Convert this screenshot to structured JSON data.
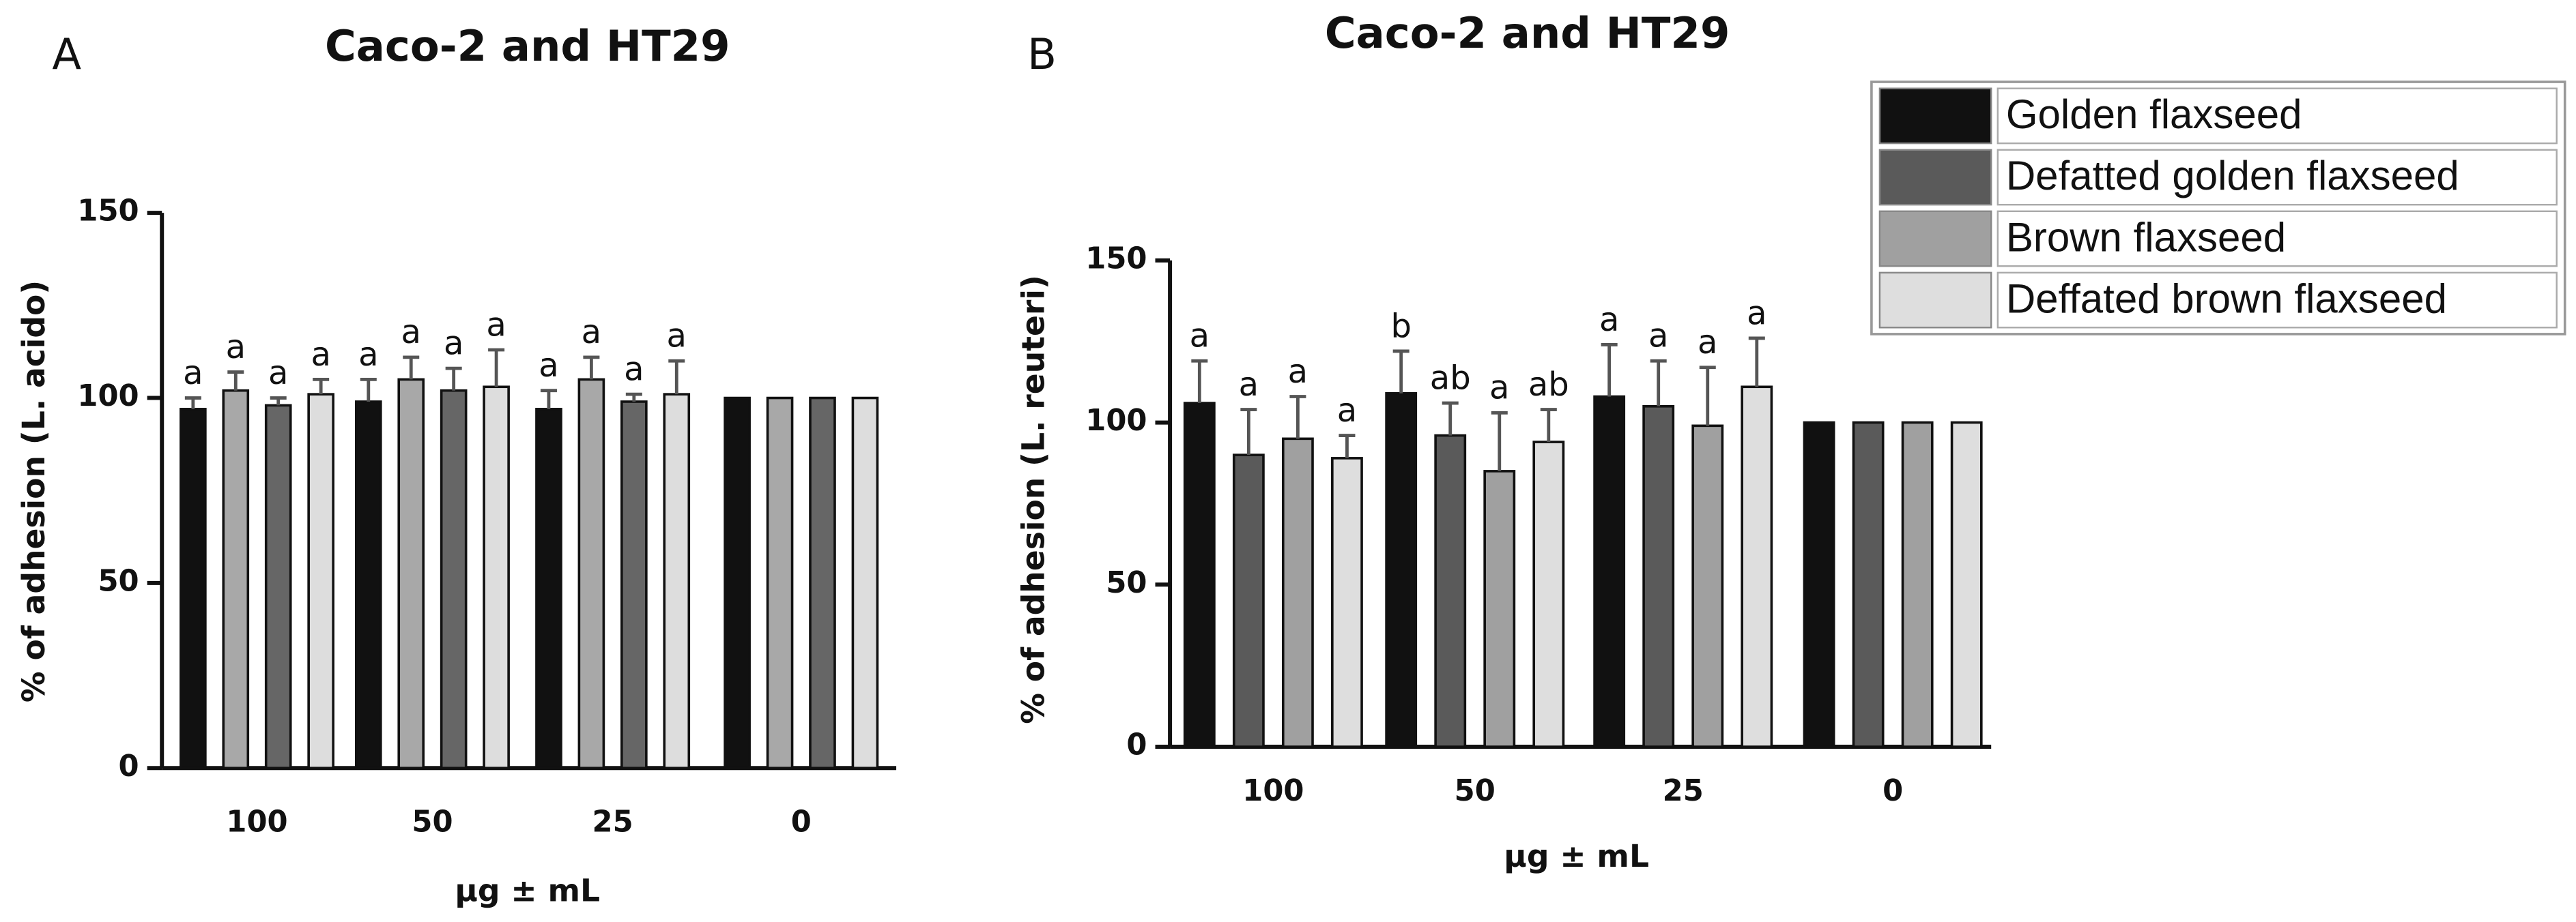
{
  "chart_data": [
    {
      "type": "bar",
      "panel_label": "A",
      "title": "Caco-2 and HT29",
      "ylabel": "% of adhesion (L. acido)",
      "xlabel": "μg ± mL",
      "categories": [
        "100",
        "50",
        "25",
        "0"
      ],
      "ylim": [
        0,
        150
      ],
      "yticks": [
        0,
        50,
        100,
        150
      ],
      "series": [
        {
          "color": "#111111",
          "values": [
            97,
            99,
            97,
            100
          ],
          "errors": [
            3,
            6,
            5,
            null
          ],
          "labels": [
            "a",
            "a",
            "a",
            null
          ]
        },
        {
          "color": "#a8a8a8",
          "values": [
            102,
            105,
            105,
            100
          ],
          "errors": [
            5,
            6,
            6,
            null
          ],
          "labels": [
            "a",
            "a",
            "a",
            null
          ]
        },
        {
          "color": "#666666",
          "values": [
            98,
            102,
            99,
            100
          ],
          "errors": [
            2,
            6,
            2,
            null
          ],
          "labels": [
            "a",
            "a",
            "a",
            null
          ]
        },
        {
          "color": "#dddddd",
          "values": [
            101,
            103,
            101,
            100
          ],
          "errors": [
            4,
            10,
            9,
            null
          ],
          "labels": [
            "a",
            "a",
            "a",
            null
          ]
        }
      ]
    },
    {
      "type": "bar",
      "panel_label": "B",
      "title": "Caco-2 and HT29",
      "ylabel": "% of adhesion (L. reuteri)",
      "xlabel": "μg ± mL",
      "categories": [
        "100",
        "50",
        "25",
        "0"
      ],
      "ylim": [
        0,
        150
      ],
      "yticks": [
        0,
        50,
        100,
        150
      ],
      "series": [
        {
          "name": "Golden flaxseed",
          "color": "#111111",
          "values": [
            106,
            109,
            108,
            100
          ],
          "errors": [
            13,
            13,
            16,
            null
          ],
          "labels": [
            "a",
            "b",
            "a",
            null
          ]
        },
        {
          "name": "Defatted golden flaxseed",
          "color": "#5a5a5a",
          "values": [
            90,
            96,
            105,
            100
          ],
          "errors": [
            14,
            10,
            14,
            null
          ],
          "labels": [
            "a",
            "ab",
            "a",
            null
          ]
        },
        {
          "name": "Brown flaxseed",
          "color": "#a0a0a0",
          "values": [
            95,
            85,
            99,
            100
          ],
          "errors": [
            13,
            18,
            18,
            null
          ],
          "labels": [
            "a",
            "a",
            "a",
            null
          ]
        },
        {
          "name": "Deffated brown flaxseed",
          "color": "#dedede",
          "values": [
            89,
            94,
            111,
            100
          ],
          "errors": [
            7,
            10,
            15,
            null
          ],
          "labels": [
            "a",
            "ab",
            "a",
            null
          ]
        }
      ]
    }
  ]
}
